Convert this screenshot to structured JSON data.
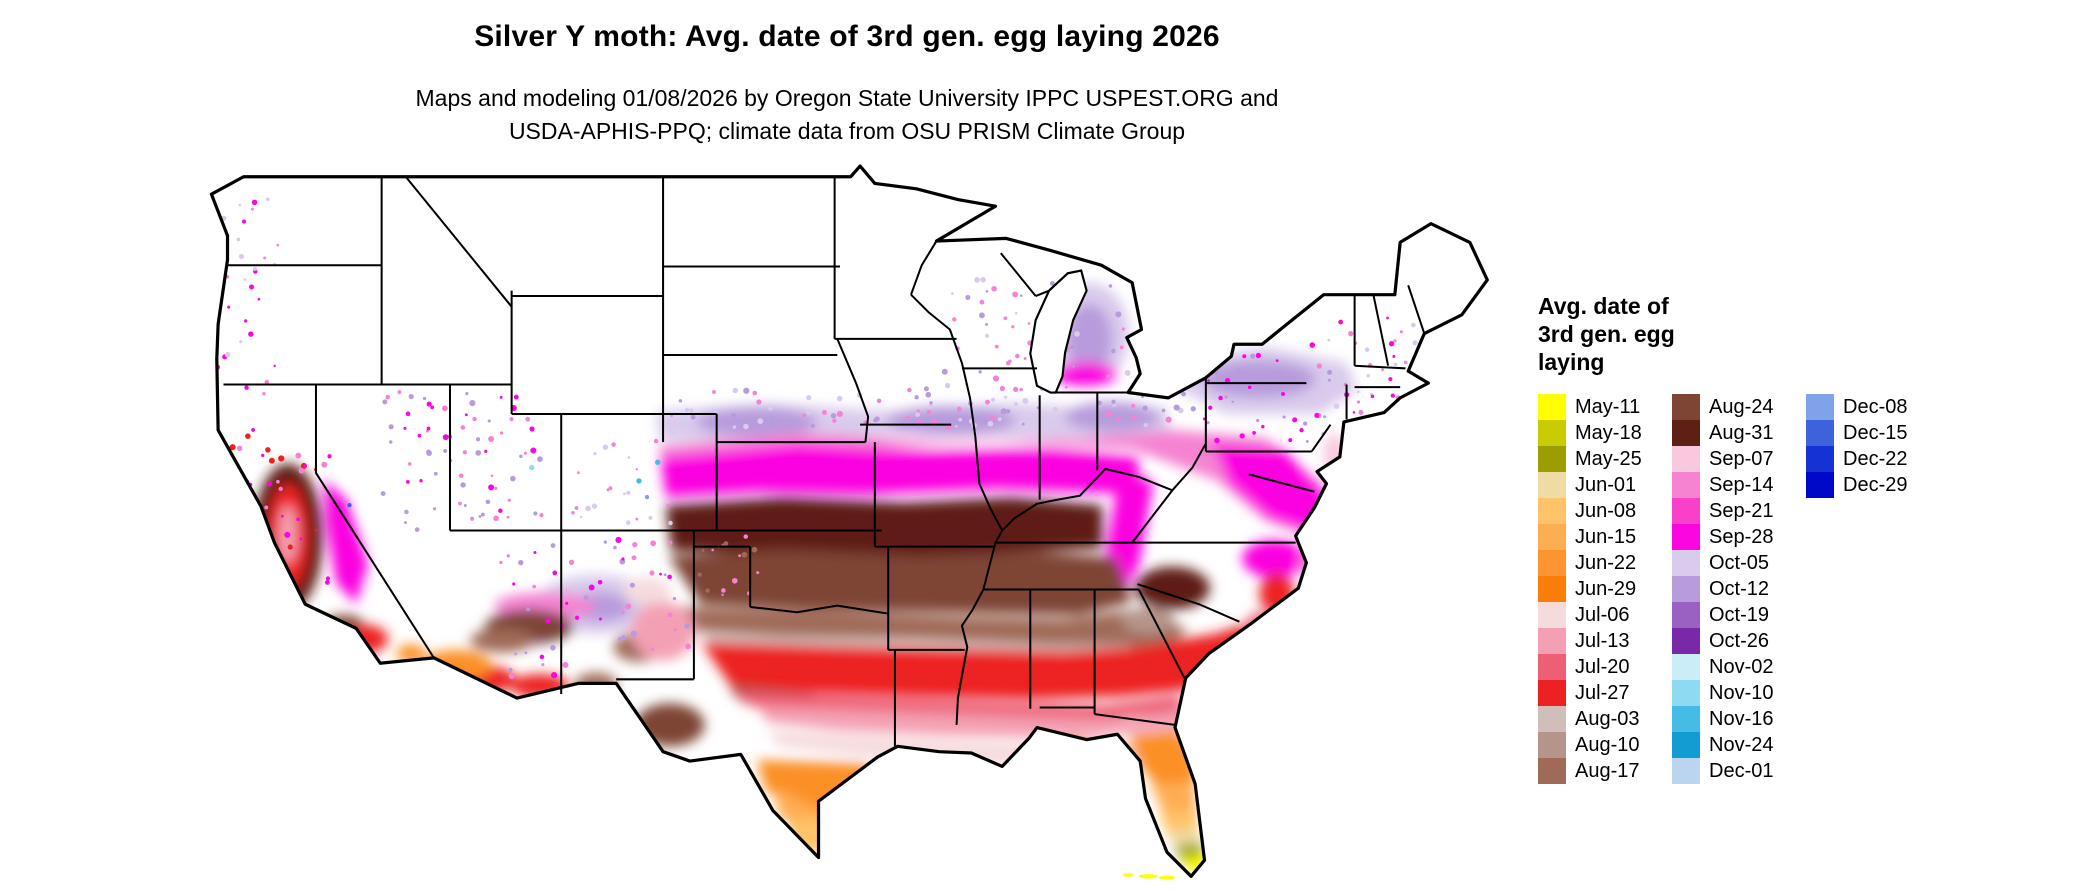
{
  "header": {
    "title": "Silver Y moth: Avg. date of 3rd gen. egg laying 2026",
    "subtitle_line1": "Maps and modeling 01/08/2026 by Oregon State University IPPC USPEST.ORG and",
    "subtitle_line2": "USDA-APHIS-PPQ; climate data from OSU PRISM Climate Group"
  },
  "legend": {
    "title_lines": [
      "Avg. date of",
      "3rd gen. egg",
      "laying"
    ],
    "columns": [
      [
        {
          "label": "May-11",
          "color": "#FFFF00"
        },
        {
          "label": "May-18",
          "color": "#C8CC00"
        },
        {
          "label": "May-25",
          "color": "#9A9E00"
        },
        {
          "label": "Jun-01",
          "color": "#EFDBA4"
        },
        {
          "label": "Jun-08",
          "color": "#FFC469"
        },
        {
          "label": "Jun-15",
          "color": "#FFAD52"
        },
        {
          "label": "Jun-22",
          "color": "#FC9432"
        },
        {
          "label": "Jun-29",
          "color": "#FA7D09"
        },
        {
          "label": "Jul-06",
          "color": "#F6DBDD"
        },
        {
          "label": "Jul-13",
          "color": "#F4A0B4"
        },
        {
          "label": "Jul-20",
          "color": "#EE5E75"
        },
        {
          "label": "Jul-27",
          "color": "#ED2024"
        },
        {
          "label": "Aug-03",
          "color": "#CFBEBA"
        },
        {
          "label": "Aug-10",
          "color": "#B5948B"
        },
        {
          "label": "Aug-17",
          "color": "#A06A58"
        }
      ],
      [
        {
          "label": "Aug-24",
          "color": "#7E4434"
        },
        {
          "label": "Aug-31",
          "color": "#5E1F14"
        },
        {
          "label": "Sep-07",
          "color": "#F8C8DF"
        },
        {
          "label": "Sep-14",
          "color": "#F583D2"
        },
        {
          "label": "Sep-21",
          "color": "#FA3FC8"
        },
        {
          "label": "Sep-28",
          "color": "#FB05E0"
        },
        {
          "label": "Oct-05",
          "color": "#D9CBEC"
        },
        {
          "label": "Oct-12",
          "color": "#B79BDC"
        },
        {
          "label": "Oct-19",
          "color": "#9A60C2"
        },
        {
          "label": "Oct-26",
          "color": "#7928A8"
        },
        {
          "label": "Nov-02",
          "color": "#CBEDF8"
        },
        {
          "label": "Nov-10",
          "color": "#8EDAF2"
        },
        {
          "label": "Nov-16",
          "color": "#44BCE6"
        },
        {
          "label": "Nov-24",
          "color": "#129CD2"
        },
        {
          "label": "Dec-01",
          "color": "#BBD4F0"
        }
      ],
      [
        {
          "label": "Dec-08",
          "color": "#7FA2E8"
        },
        {
          "label": "Dec-15",
          "color": "#3D62DC"
        },
        {
          "label": "Dec-22",
          "color": "#1532D2"
        },
        {
          "label": "Dec-29",
          "color": "#0009C8"
        }
      ]
    ]
  },
  "map": {
    "region": "Contiguous United States",
    "no_data_color": "#FFFFFF",
    "border_color": "#000000"
  }
}
